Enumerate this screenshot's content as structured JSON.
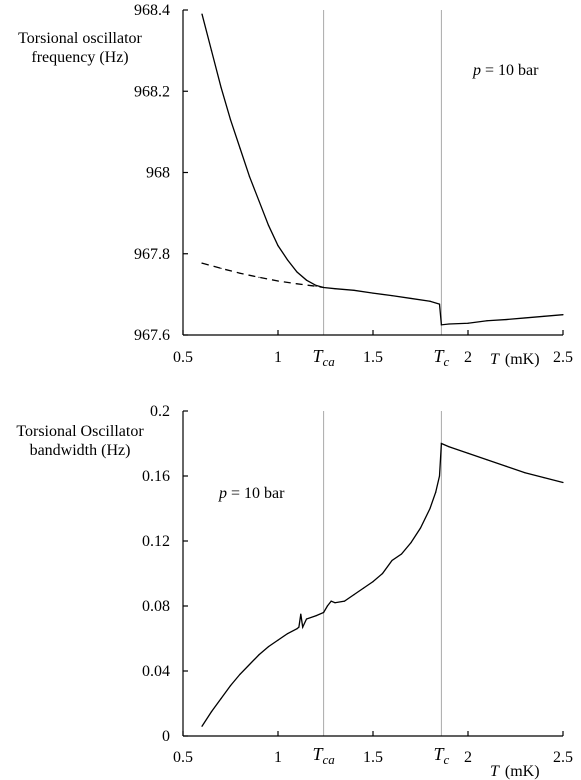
{
  "chart_data": [
    {
      "type": "line",
      "ylabel": [
        "Torsional oscillator",
        "frequency  (Hz)"
      ],
      "xlabel": {
        "var": "T",
        "unit": "(mK)"
      },
      "xlim": [
        0.5,
        2.5
      ],
      "ylim": [
        967.6,
        968.4
      ],
      "xticks": [
        0.5,
        1,
        1.5,
        2,
        2.5
      ],
      "xtick_labels": [
        "0.5",
        "1",
        "1.5",
        "2",
        "2.5"
      ],
      "yticks": [
        967.6,
        967.8,
        968,
        968.2,
        968.4
      ],
      "ytick_labels": [
        "967.6",
        "967.8",
        "968",
        "968.2",
        "968.4"
      ],
      "annotation": {
        "var": "p",
        "text": "=  10 bar"
      },
      "ref_lines": [
        {
          "label": "T",
          "sub": "ca",
          "x": 1.24
        },
        {
          "label": "T",
          "sub": "c",
          "x": 1.86
        }
      ],
      "series": [
        {
          "style": "solid",
          "x": [
            0.6,
            0.65,
            0.7,
            0.75,
            0.8,
            0.85,
            0.9,
            0.95,
            1.0,
            1.05,
            1.1,
            1.15,
            1.2,
            1.24,
            1.3,
            1.4,
            1.5,
            1.6,
            1.7,
            1.8,
            1.85,
            1.86,
            1.9,
            2.0,
            2.1,
            2.2,
            2.3,
            2.4,
            2.5
          ],
          "y": [
            968.39,
            968.3,
            968.21,
            968.13,
            968.06,
            967.99,
            967.93,
            967.87,
            967.82,
            967.785,
            967.755,
            967.735,
            967.722,
            967.717,
            967.714,
            967.71,
            967.703,
            967.697,
            967.69,
            967.683,
            967.676,
            967.625,
            967.627,
            967.629,
            967.635,
            967.638,
            967.642,
            967.646,
            967.65
          ]
        },
        {
          "style": "dashed",
          "x": [
            0.6,
            0.7,
            0.8,
            0.9,
            1.0,
            1.1,
            1.2,
            1.24
          ],
          "y": [
            967.777,
            967.764,
            967.752,
            967.742,
            967.733,
            967.726,
            967.72,
            967.717
          ]
        }
      ]
    },
    {
      "type": "line",
      "ylabel": [
        "Torsional Oscillator",
        "bandwidth (Hz)"
      ],
      "xlabel": {
        "var": "T",
        "unit": "(mK)"
      },
      "xlim": [
        0.5,
        2.5
      ],
      "ylim": [
        0,
        0.2
      ],
      "xticks": [
        0.5,
        1,
        1.5,
        2,
        2.5
      ],
      "xtick_labels": [
        "0.5",
        "1",
        "1.5",
        "2",
        "2.5"
      ],
      "yticks": [
        0,
        0.04,
        0.08,
        0.12,
        0.16,
        0.2
      ],
      "ytick_labels": [
        "0",
        "0.04",
        "0.08",
        "0.12",
        "0.16",
        "0.2"
      ],
      "annotation": {
        "var": "p",
        "text": "=  10 bar"
      },
      "ref_lines": [
        {
          "label": "T",
          "sub": "ca",
          "x": 1.24
        },
        {
          "label": "T",
          "sub": "c",
          "x": 1.86
        }
      ],
      "series": [
        {
          "style": "solid",
          "x": [
            0.6,
            0.65,
            0.7,
            0.75,
            0.8,
            0.85,
            0.9,
            0.95,
            1.0,
            1.05,
            1.1,
            1.11,
            1.12,
            1.13,
            1.15,
            1.2,
            1.24,
            1.26,
            1.28,
            1.3,
            1.35,
            1.4,
            1.45,
            1.5,
            1.55,
            1.6,
            1.65,
            1.7,
            1.75,
            1.8,
            1.83,
            1.85,
            1.86,
            1.9,
            2.0,
            2.1,
            2.2,
            2.3,
            2.4,
            2.5
          ],
          "y": [
            0.006,
            0.015,
            0.023,
            0.031,
            0.038,
            0.044,
            0.05,
            0.055,
            0.059,
            0.063,
            0.066,
            0.067,
            0.075,
            0.067,
            0.072,
            0.074,
            0.076,
            0.08,
            0.083,
            0.082,
            0.083,
            0.087,
            0.091,
            0.095,
            0.1,
            0.108,
            0.112,
            0.119,
            0.128,
            0.14,
            0.15,
            0.16,
            0.18,
            0.178,
            0.174,
            0.17,
            0.166,
            0.162,
            0.159,
            0.156
          ]
        }
      ]
    }
  ]
}
